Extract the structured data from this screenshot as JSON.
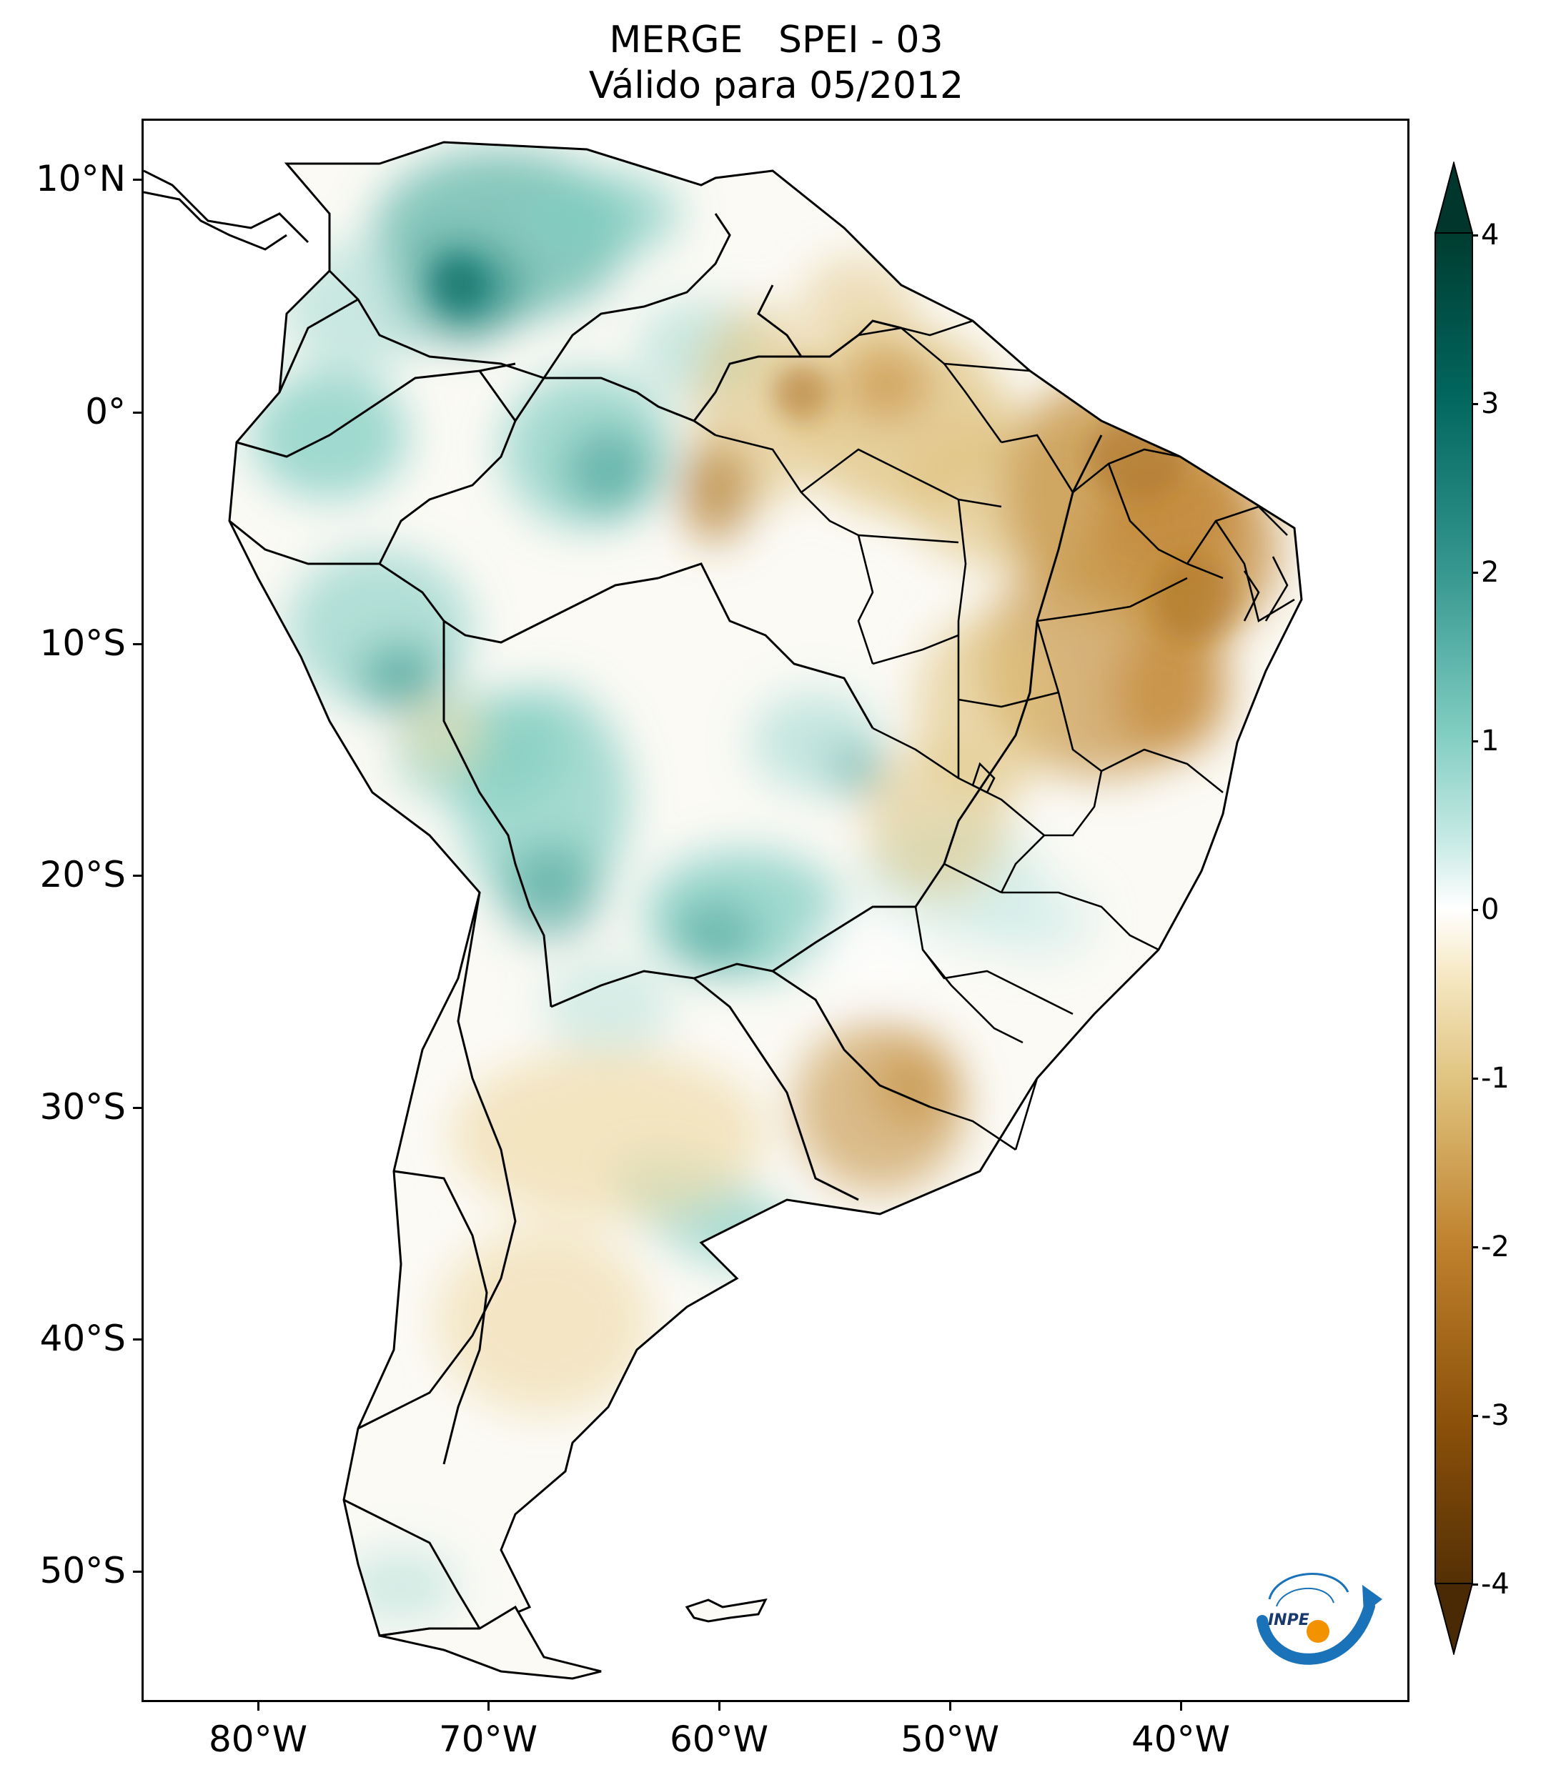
{
  "title_line1": "MERGE   SPEI - 03",
  "title_line2": "Válido para 05/2012",
  "map": {
    "variable": "SPEI - 03",
    "dataset": "MERGE",
    "valid_period": "05/2012",
    "lon_range": [
      -85,
      -29
    ],
    "lat_range": [
      -56,
      13
    ],
    "lat_ticks": [
      "10°N",
      "0°",
      "10°S",
      "20°S",
      "30°S",
      "40°S",
      "50°S"
    ],
    "lon_ticks": [
      "80°W",
      "70°W",
      "60°W",
      "50°W",
      "40°W"
    ]
  },
  "colorbar": {
    "min": -4,
    "max": 4,
    "tick_labels": [
      "4",
      "3",
      "2",
      "1",
      "0",
      "-1",
      "-2",
      "-3",
      "-4"
    ],
    "colors": {
      "dry_extreme": "#543005",
      "dry_strong": "#8c510a",
      "dry_moderate": "#bf812d",
      "dry_mild": "#dfc27d",
      "dry_weak": "#f6e8c3",
      "neutral": "#ffffff",
      "wet_weak": "#c7eae5",
      "wet_mild": "#80cdc1",
      "wet_moderate": "#35978f",
      "wet_strong": "#01665e",
      "wet_extreme": "#003c30"
    }
  },
  "logo": {
    "text": "INPE",
    "colors": {
      "arrow": "#1a73b8",
      "dot": "#f39200"
    }
  }
}
